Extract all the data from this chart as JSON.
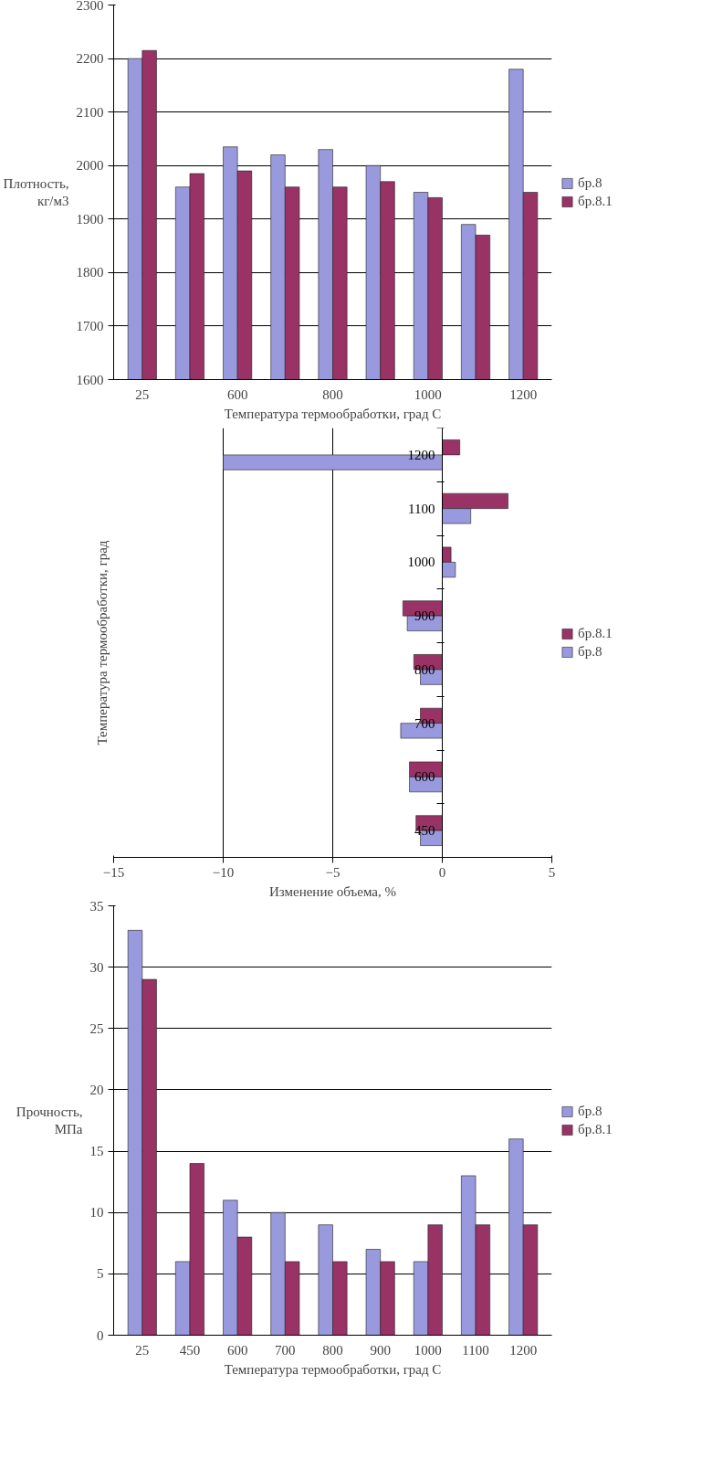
{
  "chart_data": [
    {
      "type": "bar",
      "xlabel": "Температура термообработки, град С",
      "ylabel": "Плотность, кг/м3",
      "categories": [
        "25",
        null,
        "600",
        null,
        "800",
        null,
        "1000",
        null,
        "1200"
      ],
      "series": [
        {
          "name": "бр.8",
          "color": "#9999dd",
          "values": [
            2200,
            1960,
            2035,
            2020,
            2030,
            2000,
            1950,
            1890,
            2180
          ]
        },
        {
          "name": "бр.8.1",
          "color": "#993366",
          "values": [
            2215,
            1985,
            1990,
            1960,
            1960,
            1970,
            1940,
            1870,
            1950
          ]
        }
      ],
      "ylim": [
        1600,
        2300
      ],
      "yticks": [
        1600,
        1700,
        1800,
        1900,
        2000,
        2100,
        2200,
        2300
      ],
      "grid": "y",
      "legend": "right"
    },
    {
      "type": "bar",
      "orientation": "horizontal",
      "xlabel": "Изменение объема, %",
      "ylabel": "Температура термообработки, град",
      "categories": [
        "1200",
        "1100",
        "1000",
        "900",
        "800",
        "700",
        "600",
        "450"
      ],
      "series": [
        {
          "name": "бр.8.1",
          "color": "#993366",
          "values": [
            0.8,
            3.0,
            0.4,
            -1.8,
            -1.3,
            -1.0,
            -1.5,
            -1.2
          ]
        },
        {
          "name": "бр.8",
          "color": "#9999dd",
          "values": [
            -10.0,
            1.3,
            0.6,
            -1.6,
            -1.0,
            -1.9,
            -1.5,
            -1.0
          ]
        }
      ],
      "xlim": [
        -15,
        5
      ],
      "xticks": [
        -15,
        -10,
        -5,
        0,
        5
      ],
      "grid": "x",
      "legend": "right"
    },
    {
      "type": "bar",
      "xlabel": "Температура термообработки, град С",
      "ylabel": "Прочность, МПа",
      "categories": [
        "25",
        "450",
        "600",
        "700",
        "800",
        "900",
        "1000",
        "1100",
        "1200"
      ],
      "series": [
        {
          "name": "бр.8",
          "color": "#9999dd",
          "values": [
            33,
            6,
            11,
            10,
            9,
            7,
            6,
            13,
            16
          ]
        },
        {
          "name": "бр.8.1",
          "color": "#993366",
          "values": [
            29,
            14,
            8,
            6,
            6,
            6,
            9,
            9,
            9
          ]
        }
      ],
      "ylim": [
        0,
        35
      ],
      "yticks": [
        0,
        5,
        10,
        15,
        20,
        25,
        30,
        35
      ],
      "grid": "y",
      "legend": "right"
    }
  ]
}
